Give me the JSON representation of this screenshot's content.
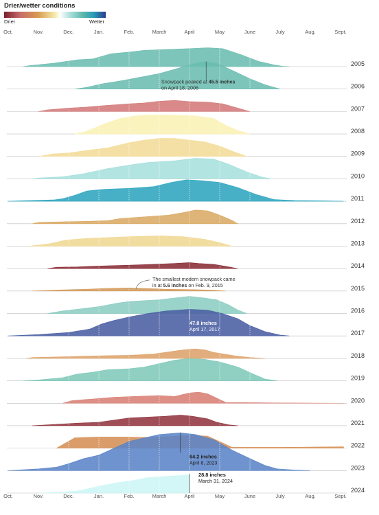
{
  "legend": {
    "title": "Drier/wetter conditions",
    "drier_label": "Drier",
    "wetter_label": "Wetter",
    "scale_colors": [
      "#7b1f2e",
      "#c96b6b",
      "#d79a4f",
      "#f6ebaa",
      "#ffffff",
      "#aadfdc",
      "#5bb6aa",
      "#2a9cb8",
      "#2a3d8f"
    ]
  },
  "chart_data": {
    "type": "area",
    "title": "",
    "xlabel": "",
    "ylabel": "",
    "x_tick_labels": [
      "Oct.",
      "Nov.",
      "Dec.",
      "Jan.",
      "Feb.",
      "March",
      "April",
      "May",
      "June",
      "July",
      "Aug.",
      "Sept."
    ],
    "x_unit": "month (1 = Oct. 1 … 12 = Sept. 1, season start)",
    "y_unit": "inches of snowpack",
    "y_max": 65,
    "grid": "vertical dotted month lines inside each ridge",
    "series": [
      {
        "name": "2005",
        "color": "#6bbdb0",
        "points": [
          [
            1.5,
            0
          ],
          [
            1.7,
            0.6
          ],
          [
            2.5,
            2
          ],
          [
            3.3,
            4
          ],
          [
            3.8,
            4.5
          ],
          [
            4.1,
            6
          ],
          [
            4.4,
            7.5
          ],
          [
            5.0,
            8.5
          ],
          [
            5.5,
            9.5
          ],
          [
            6.2,
            10
          ],
          [
            7.0,
            10.5
          ],
          [
            7.6,
            11
          ],
          [
            8.1,
            10.5
          ],
          [
            8.7,
            7
          ],
          [
            9.3,
            3
          ],
          [
            9.8,
            1
          ],
          [
            10.1,
            0.2
          ],
          [
            10.3,
            0
          ]
        ]
      },
      {
        "name": "2006",
        "color": "#6bbdb0",
        "points": [
          [
            3.2,
            0
          ],
          [
            3.6,
            1
          ],
          [
            4.1,
            3
          ],
          [
            4.8,
            5
          ],
          [
            5.4,
            7
          ],
          [
            6.0,
            9
          ],
          [
            6.6,
            12
          ],
          [
            7.2,
            15
          ],
          [
            7.55,
            16
          ],
          [
            7.9,
            15
          ],
          [
            8.4,
            11
          ],
          [
            9.0,
            6
          ],
          [
            9.5,
            2.5
          ],
          [
            10.0,
            0
          ]
        ]
      },
      {
        "name": "2007",
        "color": "#d4797a",
        "points": [
          [
            2.0,
            0
          ],
          [
            2.3,
            1
          ],
          [
            3.0,
            2
          ],
          [
            3.6,
            2.6
          ],
          [
            4.2,
            3.5
          ],
          [
            5.0,
            4.5
          ],
          [
            5.5,
            5
          ],
          [
            6.0,
            6
          ],
          [
            6.5,
            6.5
          ],
          [
            7.0,
            5.8
          ],
          [
            7.6,
            5.5
          ],
          [
            8.1,
            4.5
          ],
          [
            8.6,
            2
          ],
          [
            9.0,
            0
          ]
        ]
      },
      {
        "name": "2008",
        "color": "#faf1b5",
        "points": [
          [
            3.2,
            0
          ],
          [
            3.5,
            1
          ],
          [
            3.8,
            3
          ],
          [
            4.2,
            6
          ],
          [
            4.7,
            9
          ],
          [
            5.2,
            10.5
          ],
          [
            5.6,
            11
          ],
          [
            6.3,
            11
          ],
          [
            7.2,
            10.5
          ],
          [
            7.8,
            9
          ],
          [
            8.2,
            5
          ],
          [
            8.6,
            2
          ],
          [
            9.0,
            0
          ]
        ]
      },
      {
        "name": "2009",
        "color": "#f3dc98",
        "points": [
          [
            2.0,
            0
          ],
          [
            2.5,
            1.5
          ],
          [
            3.0,
            2
          ],
          [
            3.6,
            3.5
          ],
          [
            4.3,
            5
          ],
          [
            5.0,
            8
          ],
          [
            5.5,
            9.5
          ],
          [
            6.0,
            10.5
          ],
          [
            6.5,
            10.5
          ],
          [
            7.0,
            9.5
          ],
          [
            7.5,
            8.5
          ],
          [
            8.0,
            6
          ],
          [
            8.5,
            2.5
          ],
          [
            8.9,
            0
          ]
        ]
      },
      {
        "name": "2010",
        "color": "#a7e0dd",
        "points": [
          [
            1.8,
            0
          ],
          [
            2.0,
            0.5
          ],
          [
            2.8,
            1.2
          ],
          [
            3.5,
            3
          ],
          [
            4.3,
            6
          ],
          [
            5.0,
            8
          ],
          [
            5.6,
            9.5
          ],
          [
            6.5,
            10.5
          ],
          [
            7.2,
            12
          ],
          [
            7.8,
            11.5
          ],
          [
            8.3,
            8.5
          ],
          [
            8.9,
            4
          ],
          [
            9.4,
            1
          ],
          [
            9.7,
            0
          ]
        ]
      },
      {
        "name": "2011",
        "color": "#2da5bf",
        "points": [
          [
            1.0,
            0
          ],
          [
            1.5,
            0.3
          ],
          [
            2.5,
            0.8
          ],
          [
            2.8,
            1.5
          ],
          [
            3.2,
            3.5
          ],
          [
            3.6,
            6
          ],
          [
            4.2,
            7
          ],
          [
            5.0,
            7.5
          ],
          [
            5.8,
            8.5
          ],
          [
            6.4,
            11
          ],
          [
            6.9,
            12.5
          ],
          [
            7.4,
            12
          ],
          [
            8.0,
            11
          ],
          [
            8.6,
            8
          ],
          [
            9.2,
            4
          ],
          [
            9.8,
            1
          ],
          [
            10.5,
            0.4
          ],
          [
            11.5,
            0.2
          ],
          [
            12.1,
            0
          ]
        ]
      },
      {
        "name": "2012",
        "color": "#d9aa65",
        "points": [
          [
            1.8,
            0
          ],
          [
            2.0,
            0.8
          ],
          [
            3.0,
            1.2
          ],
          [
            3.6,
            1.4
          ],
          [
            4.3,
            1.8
          ],
          [
            4.7,
            3
          ],
          [
            5.5,
            4
          ],
          [
            6.3,
            5
          ],
          [
            6.8,
            6.5
          ],
          [
            7.2,
            8
          ],
          [
            7.6,
            7.5
          ],
          [
            8.0,
            5
          ],
          [
            8.4,
            2
          ],
          [
            8.6,
            0
          ]
        ]
      },
      {
        "name": "2013",
        "color": "#f0d893",
        "points": [
          [
            1.7,
            0
          ],
          [
            2.0,
            0.6
          ],
          [
            2.4,
            1.5
          ],
          [
            2.9,
            3.5
          ],
          [
            3.6,
            4.5
          ],
          [
            4.3,
            5
          ],
          [
            5.0,
            5.5
          ],
          [
            6.0,
            6
          ],
          [
            6.8,
            5.5
          ],
          [
            7.5,
            4
          ],
          [
            8.0,
            2
          ],
          [
            8.4,
            0
          ]
        ]
      },
      {
        "name": "2014",
        "color": "#8a2c35",
        "points": [
          [
            2.3,
            0
          ],
          [
            2.6,
            0.8
          ],
          [
            3.3,
            1
          ],
          [
            4.0,
            1.5
          ],
          [
            5.0,
            2
          ],
          [
            5.8,
            2.5
          ],
          [
            6.5,
            3
          ],
          [
            7.0,
            3.5
          ],
          [
            7.3,
            3
          ],
          [
            7.8,
            2.5
          ],
          [
            8.3,
            1
          ],
          [
            8.6,
            0
          ]
        ]
      },
      {
        "name": "2015",
        "color": "#d39a5b",
        "points": [
          [
            1.8,
            0
          ],
          [
            2.5,
            0.5
          ],
          [
            3.5,
            1
          ],
          [
            4.2,
            1.5
          ],
          [
            5.0,
            1.8
          ],
          [
            5.5,
            1.5
          ],
          [
            6.3,
            1
          ],
          [
            7.1,
            0.8
          ],
          [
            7.8,
            0.5
          ],
          [
            8.2,
            0
          ]
        ]
      },
      {
        "name": "2016",
        "color": "#8ccdc2",
        "points": [
          [
            2.3,
            0
          ],
          [
            2.8,
            1.5
          ],
          [
            3.3,
            2.5
          ],
          [
            4.0,
            4
          ],
          [
            4.6,
            6
          ],
          [
            5.0,
            7
          ],
          [
            5.5,
            7.5
          ],
          [
            6.0,
            8
          ],
          [
            6.5,
            9
          ],
          [
            7.0,
            10
          ],
          [
            7.5,
            9
          ],
          [
            7.9,
            8
          ],
          [
            8.3,
            5
          ],
          [
            8.6,
            2
          ],
          [
            8.9,
            0
          ]
        ]
      },
      {
        "name": "2017",
        "color": "#4a5fa3",
        "points": [
          [
            1.0,
            0
          ],
          [
            2.0,
            0.8
          ],
          [
            3.0,
            2
          ],
          [
            3.7,
            4
          ],
          [
            4.1,
            7
          ],
          [
            4.5,
            9
          ],
          [
            5.0,
            11
          ],
          [
            5.6,
            13
          ],
          [
            6.2,
            14.5
          ],
          [
            7.0,
            15.5
          ],
          [
            7.6,
            15
          ],
          [
            8.1,
            13
          ],
          [
            8.6,
            10
          ],
          [
            9.0,
            6
          ],
          [
            9.5,
            2.5
          ],
          [
            10.0,
            0.5
          ],
          [
            10.3,
            0
          ]
        ]
      },
      {
        "name": "2018",
        "color": "#dea26a",
        "points": [
          [
            1.6,
            0
          ],
          [
            1.8,
            0.5
          ],
          [
            3.0,
            1
          ],
          [
            4.0,
            1.5
          ],
          [
            5.0,
            1.8
          ],
          [
            5.8,
            2.5
          ],
          [
            6.4,
            4
          ],
          [
            6.8,
            5
          ],
          [
            7.2,
            5.5
          ],
          [
            7.5,
            5
          ],
          [
            7.8,
            3.5
          ],
          [
            8.5,
            1.5
          ],
          [
            9.0,
            0.5
          ],
          [
            9.5,
            0
          ]
        ]
      },
      {
        "name": "2019",
        "color": "#80c9ba",
        "points": [
          [
            1.5,
            0
          ],
          [
            2.0,
            0.5
          ],
          [
            2.8,
            1.8
          ],
          [
            3.3,
            4
          ],
          [
            3.8,
            5
          ],
          [
            4.3,
            6.5
          ],
          [
            5.0,
            7
          ],
          [
            5.5,
            8
          ],
          [
            6.0,
            10
          ],
          [
            6.5,
            12
          ],
          [
            7.0,
            13
          ],
          [
            7.5,
            12.5
          ],
          [
            8.0,
            11
          ],
          [
            8.6,
            8
          ],
          [
            9.1,
            4
          ],
          [
            9.5,
            1
          ],
          [
            9.9,
            0
          ]
        ]
      },
      {
        "name": "2020",
        "color": "#d88075",
        "points": [
          [
            2.8,
            0
          ],
          [
            3.1,
            1.5
          ],
          [
            3.8,
            2.5
          ],
          [
            4.5,
            3.5
          ],
          [
            5.2,
            4
          ],
          [
            6.0,
            4.5
          ],
          [
            6.5,
            4
          ],
          [
            7.0,
            6
          ],
          [
            7.3,
            6.5
          ],
          [
            7.6,
            5.5
          ],
          [
            7.9,
            3
          ],
          [
            8.2,
            0.5
          ],
          [
            10.0,
            0.2
          ],
          [
            12.1,
            0
          ]
        ]
      },
      {
        "name": "2021",
        "color": "#923540",
        "points": [
          [
            1.8,
            0
          ],
          [
            2.3,
            0.5
          ],
          [
            3.3,
            1.5
          ],
          [
            4.0,
            2
          ],
          [
            4.6,
            3.5
          ],
          [
            5.0,
            4.5
          ],
          [
            5.6,
            5
          ],
          [
            6.2,
            5.5
          ],
          [
            6.7,
            6.2
          ],
          [
            7.1,
            5.5
          ],
          [
            7.6,
            4
          ],
          [
            7.9,
            2
          ],
          [
            8.3,
            0.5
          ],
          [
            8.6,
            0
          ]
        ]
      },
      {
        "name": "2022",
        "color": "#d58f54",
        "points": [
          [
            2.6,
            0
          ],
          [
            2.8,
            2
          ],
          [
            3.2,
            6
          ],
          [
            4.0,
            6.5
          ],
          [
            4.8,
            6.5
          ],
          [
            5.5,
            6.3
          ],
          [
            6.0,
            6.5
          ],
          [
            6.6,
            7
          ],
          [
            7.1,
            7.5
          ],
          [
            7.6,
            7
          ],
          [
            8.1,
            3
          ],
          [
            8.4,
            0.5
          ],
          [
            10.0,
            0.5
          ],
          [
            12.1,
            0.8
          ]
        ]
      },
      {
        "name": "2023",
        "color": "#5b84c7",
        "points": [
          [
            1.0,
            0
          ],
          [
            2.0,
            1
          ],
          [
            2.6,
            2
          ],
          [
            3.0,
            4
          ],
          [
            3.5,
            7
          ],
          [
            4.0,
            9
          ],
          [
            4.5,
            13
          ],
          [
            5.0,
            17
          ],
          [
            5.5,
            19
          ],
          [
            6.0,
            21
          ],
          [
            6.7,
            22
          ],
          [
            7.2,
            21
          ],
          [
            7.8,
            18
          ],
          [
            8.4,
            12
          ],
          [
            9.0,
            7
          ],
          [
            9.5,
            3
          ],
          [
            9.9,
            1
          ],
          [
            10.5,
            0.3
          ],
          [
            11.0,
            0
          ]
        ]
      },
      {
        "name": "2024",
        "color": "#cdf6f6",
        "points": [
          [
            2.0,
            0
          ],
          [
            2.8,
            0.5
          ],
          [
            3.4,
            1.5
          ],
          [
            4.0,
            4
          ],
          [
            4.6,
            6
          ],
          [
            5.2,
            7.5
          ],
          [
            5.6,
            9
          ],
          [
            6.0,
            9.5
          ],
          [
            6.5,
            10
          ],
          [
            6.85,
            10.5
          ],
          [
            7.0,
            10.6
          ]
        ]
      }
    ],
    "annotations": [
      {
        "year": "2006",
        "text_pre": "Snowpack peaked at ",
        "value": "45.5 inches",
        "date_line": "on April 18, 2006"
      },
      {
        "year": "2015",
        "text_line1": "The smallest modern snowpack came",
        "text_pre": "in at ",
        "value": "5.6 inches",
        "text_post": " on Feb. 9, 2015"
      },
      {
        "year": "2017",
        "value": "47.8 inches",
        "date_line": "April 17, 2017"
      },
      {
        "year": "2023",
        "value": "64.2 inches",
        "date_line": "April 8, 2023"
      },
      {
        "year": "2024",
        "value": "28.8 inches",
        "date_line": "March 31, 2024"
      }
    ]
  }
}
